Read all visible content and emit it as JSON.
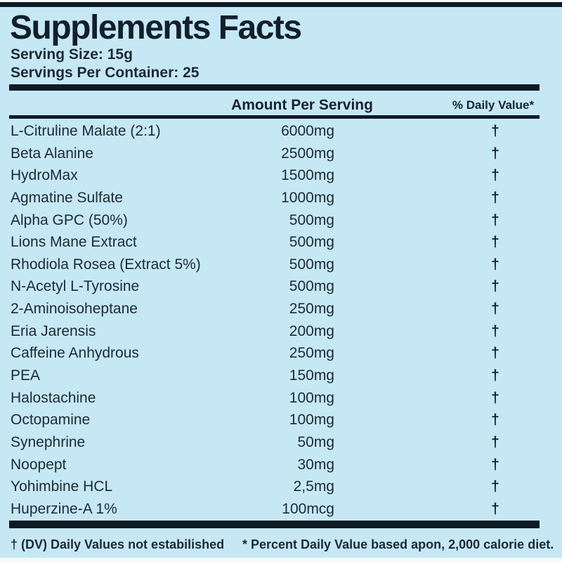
{
  "label": {
    "title": "Supplements Facts",
    "serving_size": "Serving Size: 15g",
    "servings_per_container": "Servings Per Container: 25",
    "columns": {
      "amount": "Amount Per Serving",
      "daily_value": "% Daily Value*"
    },
    "rows": [
      {
        "name": "L-Citruline Malate (2:1)",
        "amount": "6000mg",
        "dv": "†"
      },
      {
        "name": "Beta Alanine",
        "amount": "2500mg",
        "dv": "†"
      },
      {
        "name": "HydroMax",
        "amount": "1500mg",
        "dv": "†"
      },
      {
        "name": "Agmatine Sulfate",
        "amount": "1000mg",
        "dv": "†"
      },
      {
        "name": "Alpha GPC (50%)",
        "amount": "500mg",
        "dv": "†"
      },
      {
        "name": "Lions Mane Extract",
        "amount": "500mg",
        "dv": "†"
      },
      {
        "name": "Rhodiola Rosea (Extract 5%)",
        "amount": "500mg",
        "dv": "†"
      },
      {
        "name": "N-Acetyl L-Tyrosine",
        "amount": "500mg",
        "dv": "†"
      },
      {
        "name": "2-Aminoisoheptane",
        "amount": "250mg",
        "dv": "†"
      },
      {
        "name": "Eria Jarensis",
        "amount": "200mg",
        "dv": "†"
      },
      {
        "name": "Caffeine Anhydrous",
        "amount": "250mg",
        "dv": "†"
      },
      {
        "name": "PEA",
        "amount": "150mg",
        "dv": "†"
      },
      {
        "name": "Halostachine",
        "amount": "100mg",
        "dv": "†"
      },
      {
        "name": "Octopamine",
        "amount": "100mg",
        "dv": "†"
      },
      {
        "name": "Synephrine",
        "amount": "50mg",
        "dv": "†"
      },
      {
        "name": "Noopept",
        "amount": "30mg",
        "dv": "†"
      },
      {
        "name": "Yohimbine HCL",
        "amount": "2,5mg",
        "dv": "†"
      },
      {
        "name": "Huperzine-A 1%",
        "amount": "100mcg",
        "dv": "†"
      }
    ],
    "footnotes": {
      "dagger_note": "† (DV) Daily Values not estabilished",
      "asterisk_note": "* Percent Daily Value based apon, 2,000 calorie diet."
    },
    "colors": {
      "background": "#c6e8f5",
      "text": "#1c2935",
      "bars": "#0d1b26",
      "page_edge": "#f6fafb"
    }
  }
}
